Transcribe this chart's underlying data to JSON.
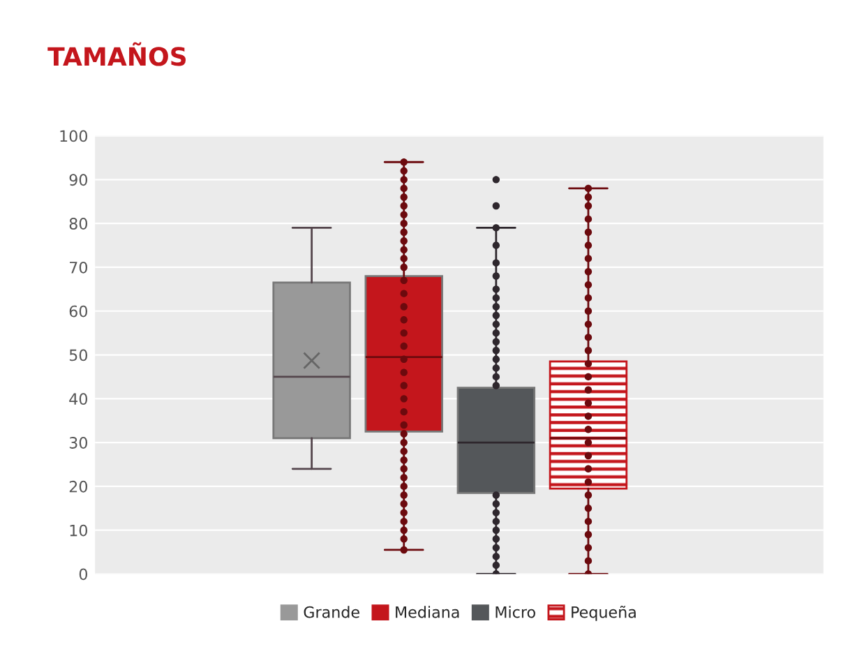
{
  "chart_data": {
    "type": "box",
    "title": "TAMAÑOS",
    "categories": [
      null
    ],
    "ylim": [
      0,
      100
    ],
    "yticks": [
      0,
      10,
      20,
      30,
      40,
      50,
      60,
      70,
      80,
      90,
      100
    ],
    "grid": "y",
    "legend": "bottom",
    "series": [
      {
        "name": "Grande",
        "color": "#999999",
        "boxes": [
          {
            "low": 24,
            "q1": 31,
            "median": 45,
            "q3": 66.5,
            "high": 79,
            "mean": 48.7
          }
        ]
      },
      {
        "name": "Mediana",
        "color": "#c4161c",
        "boxes": [
          {
            "low": 5.5,
            "q1": 32.5,
            "median": 49.5,
            "q3": 68,
            "high": 94,
            "outliers": [
              5.5,
              8,
              10,
              12,
              14,
              16,
              18,
              20,
              22,
              24,
              26,
              28,
              30,
              32,
              34,
              37,
              40,
              43,
              46,
              49,
              52,
              55,
              58,
              61,
              64,
              67,
              70,
              72,
              74,
              76,
              78,
              80,
              82,
              84,
              86,
              88,
              90,
              92,
              94
            ]
          }
        ]
      },
      {
        "name": "Micro",
        "color": "#54575a",
        "boxes": [
          {
            "low": 0,
            "q1": 18.5,
            "median": 30,
            "q3": 42.5,
            "high": 79,
            "outliers": [
              0,
              2,
              4,
              6,
              8,
              10,
              12,
              14,
              16,
              18,
              43,
              45,
              47,
              49,
              51,
              53,
              55,
              57,
              59,
              61,
              63,
              65,
              68,
              71,
              75,
              79,
              84,
              90
            ]
          }
        ]
      },
      {
        "name": "Pequeña",
        "color": "#c4161c",
        "boxes": [
          {
            "low": 0,
            "q1": 19.5,
            "median": 31,
            "q3": 48.5,
            "high": 88,
            "outliers": [
              0,
              3,
              6,
              9,
              12,
              15,
              18,
              21,
              24,
              27,
              30,
              33,
              36,
              39,
              42,
              45,
              48,
              51,
              54,
              57,
              60,
              63,
              66,
              69,
              72,
              75,
              78,
              81,
              84,
              86,
              88
            ]
          }
        ]
      }
    ]
  }
}
